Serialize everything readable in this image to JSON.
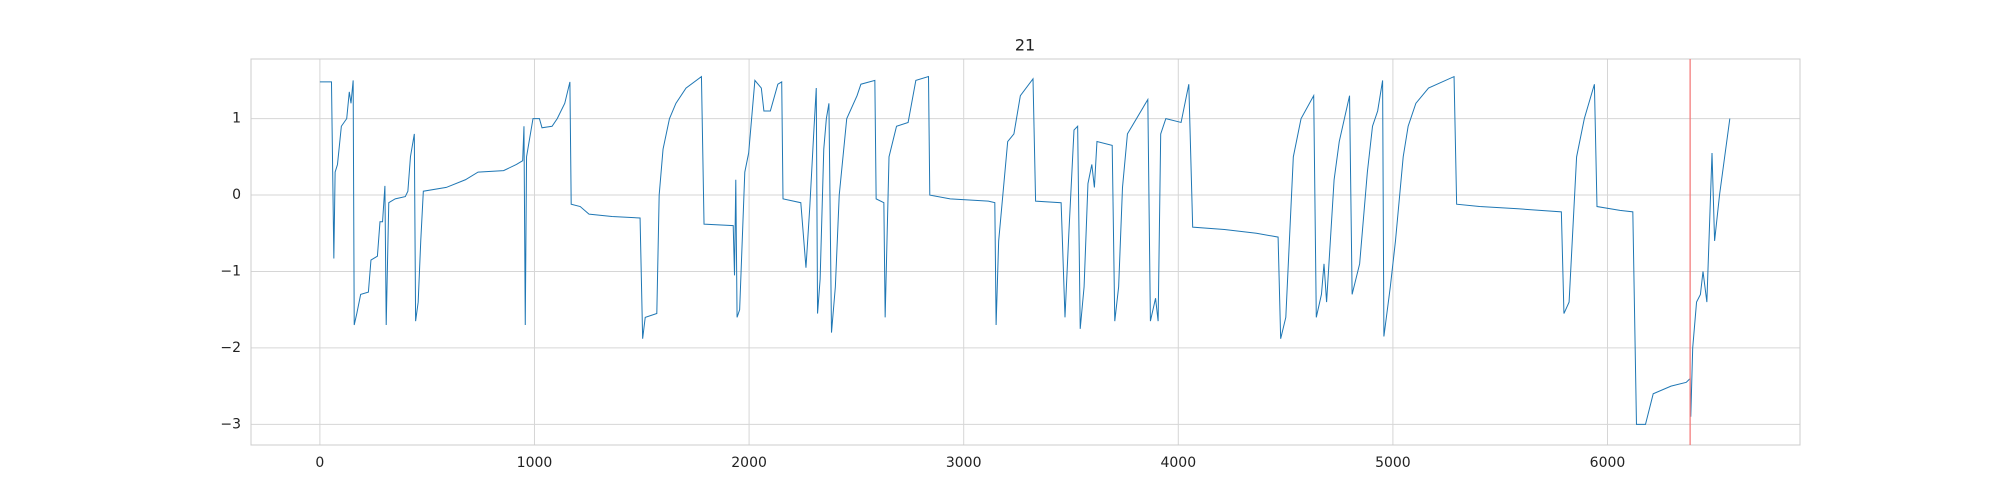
{
  "chart_data": {
    "type": "line",
    "title": "21",
    "x": [
      0,
      54,
      65,
      71,
      82,
      100,
      125,
      137,
      145,
      155,
      160,
      172,
      190,
      226,
      238,
      268,
      280,
      292,
      303,
      309,
      321,
      351,
      398,
      410,
      422,
      440,
      446,
      458,
      470,
      482,
      589,
      678,
      737,
      856,
      916,
      945,
      951,
      957,
      963,
      993,
      1023,
      1035,
      1082,
      1106,
      1141,
      1165,
      1171,
      1213,
      1254,
      1361,
      1492,
      1504,
      1516,
      1570,
      1581,
      1599,
      1629,
      1659,
      1706,
      1778,
      1790,
      1926,
      1932,
      1938,
      1944,
      1956,
      1980,
      1998,
      2027,
      2057,
      2069,
      2099,
      2134,
      2152,
      2158,
      2241,
      2265,
      2283,
      2301,
      2313,
      2319,
      2331,
      2348,
      2360,
      2372,
      2384,
      2402,
      2420,
      2455,
      2503,
      2521,
      2586,
      2592,
      2628,
      2634,
      2652,
      2687,
      2741,
      2777,
      2836,
      2842,
      2937,
      3115,
      3145,
      3151,
      3163,
      3205,
      3234,
      3264,
      3323,
      3335,
      3454,
      3472,
      3490,
      3514,
      3531,
      3543,
      3561,
      3579,
      3597,
      3609,
      3621,
      3692,
      3704,
      3722,
      3740,
      3763,
      3858,
      3870,
      3894,
      3906,
      3918,
      3942,
      4013,
      4049,
      4067,
      4215,
      4364,
      4465,
      4477,
      4501,
      4536,
      4572,
      4631,
      4643,
      4667,
      4679,
      4691,
      4726,
      4750,
      4798,
      4810,
      4845,
      4881,
      4905,
      4929,
      4952,
      4958,
      4988,
      5012,
      5048,
      5071,
      5107,
      5166,
      5285,
      5297,
      5404,
      5583,
      5785,
      5797,
      5821,
      5856,
      5892,
      5939,
      5951,
      6058,
      6118,
      6135,
      6177,
      6213,
      6296,
      6367,
      6385,
      6388,
      6397,
      6415,
      6433,
      6445,
      6463,
      6487,
      6499,
      6522,
      6546,
      6570
    ],
    "series": [
      {
        "color": "#1f77b4",
        "values": [
          1.48,
          1.48,
          -0.83,
          0.3,
          0.4,
          0.9,
          1.0,
          1.35,
          1.2,
          1.5,
          -1.7,
          -1.55,
          -1.3,
          -1.27,
          -0.85,
          -0.8,
          -0.35,
          -0.35,
          0.12,
          -1.7,
          -0.1,
          -0.05,
          -0.02,
          0.05,
          0.5,
          0.8,
          -1.65,
          -1.4,
          -0.6,
          0.05,
          0.1,
          0.2,
          0.3,
          0.32,
          0.4,
          0.45,
          0.9,
          -1.7,
          0.5,
          1.0,
          1.0,
          0.88,
          0.9,
          1.0,
          1.2,
          1.48,
          -0.12,
          -0.15,
          -0.25,
          -0.28,
          -0.3,
          -1.88,
          -1.6,
          -1.55,
          0,
          0.6,
          1.0,
          1.2,
          1.4,
          1.55,
          -0.38,
          -0.4,
          -1.05,
          0.2,
          -1.6,
          -1.5,
          0.3,
          0.55,
          1.5,
          1.4,
          1.1,
          1.1,
          1.45,
          1.48,
          -0.05,
          -0.1,
          -0.95,
          -0.15,
          0.8,
          1.4,
          -1.55,
          -1.1,
          0.6,
          1.0,
          1.2,
          -1.8,
          -1.2,
          0,
          1.0,
          1.3,
          1.45,
          1.5,
          -0.05,
          -0.1,
          -1.6,
          0.5,
          0.9,
          0.95,
          1.5,
          1.55,
          0,
          -0.05,
          -0.08,
          -0.1,
          -1.7,
          -0.6,
          0.7,
          0.8,
          1.3,
          1.52,
          -0.08,
          -0.1,
          -1.6,
          -0.5,
          0.85,
          0.9,
          -1.75,
          -1.2,
          0.15,
          0.4,
          0.1,
          0.7,
          0.65,
          -1.65,
          -1.2,
          0.1,
          0.8,
          1.25,
          -1.65,
          -1.35,
          -1.65,
          0.8,
          1.0,
          0.95,
          1.45,
          -0.42,
          -0.45,
          -0.5,
          -0.55,
          -1.88,
          -1.6,
          0.5,
          1.0,
          1.3,
          -1.6,
          -1.3,
          -0.9,
          -1.4,
          0.2,
          0.7,
          1.3,
          -1.3,
          -0.9,
          0.3,
          0.9,
          1.1,
          1.5,
          -1.85,
          -1.2,
          -0.6,
          0.5,
          0.9,
          1.2,
          1.4,
          1.55,
          -0.12,
          -0.15,
          -0.18,
          -0.22,
          -1.55,
          -1.4,
          0.5,
          1.0,
          1.45,
          -0.15,
          -0.2,
          -0.22,
          -3.0,
          -3.0,
          -2.6,
          -2.5,
          -2.45,
          -2.4,
          -2.9,
          -2.0,
          -1.4,
          -1.3,
          -1.0,
          -1.4,
          0.55,
          -0.6,
          0,
          0.5,
          1.0
        ]
      }
    ],
    "vline": {
      "x": 6385,
      "color": "#f47c7c"
    },
    "xlim": [
      -321,
      6897
    ],
    "ylim": [
      -3.27,
      1.78
    ],
    "xticks": [
      0,
      1000,
      2000,
      3000,
      4000,
      5000,
      6000
    ],
    "yticks": [
      {
        "value": -3,
        "label": "−3"
      },
      {
        "value": -2,
        "label": "−2"
      },
      {
        "value": -1,
        "label": "−1"
      },
      0,
      1
    ],
    "grid": true
  }
}
